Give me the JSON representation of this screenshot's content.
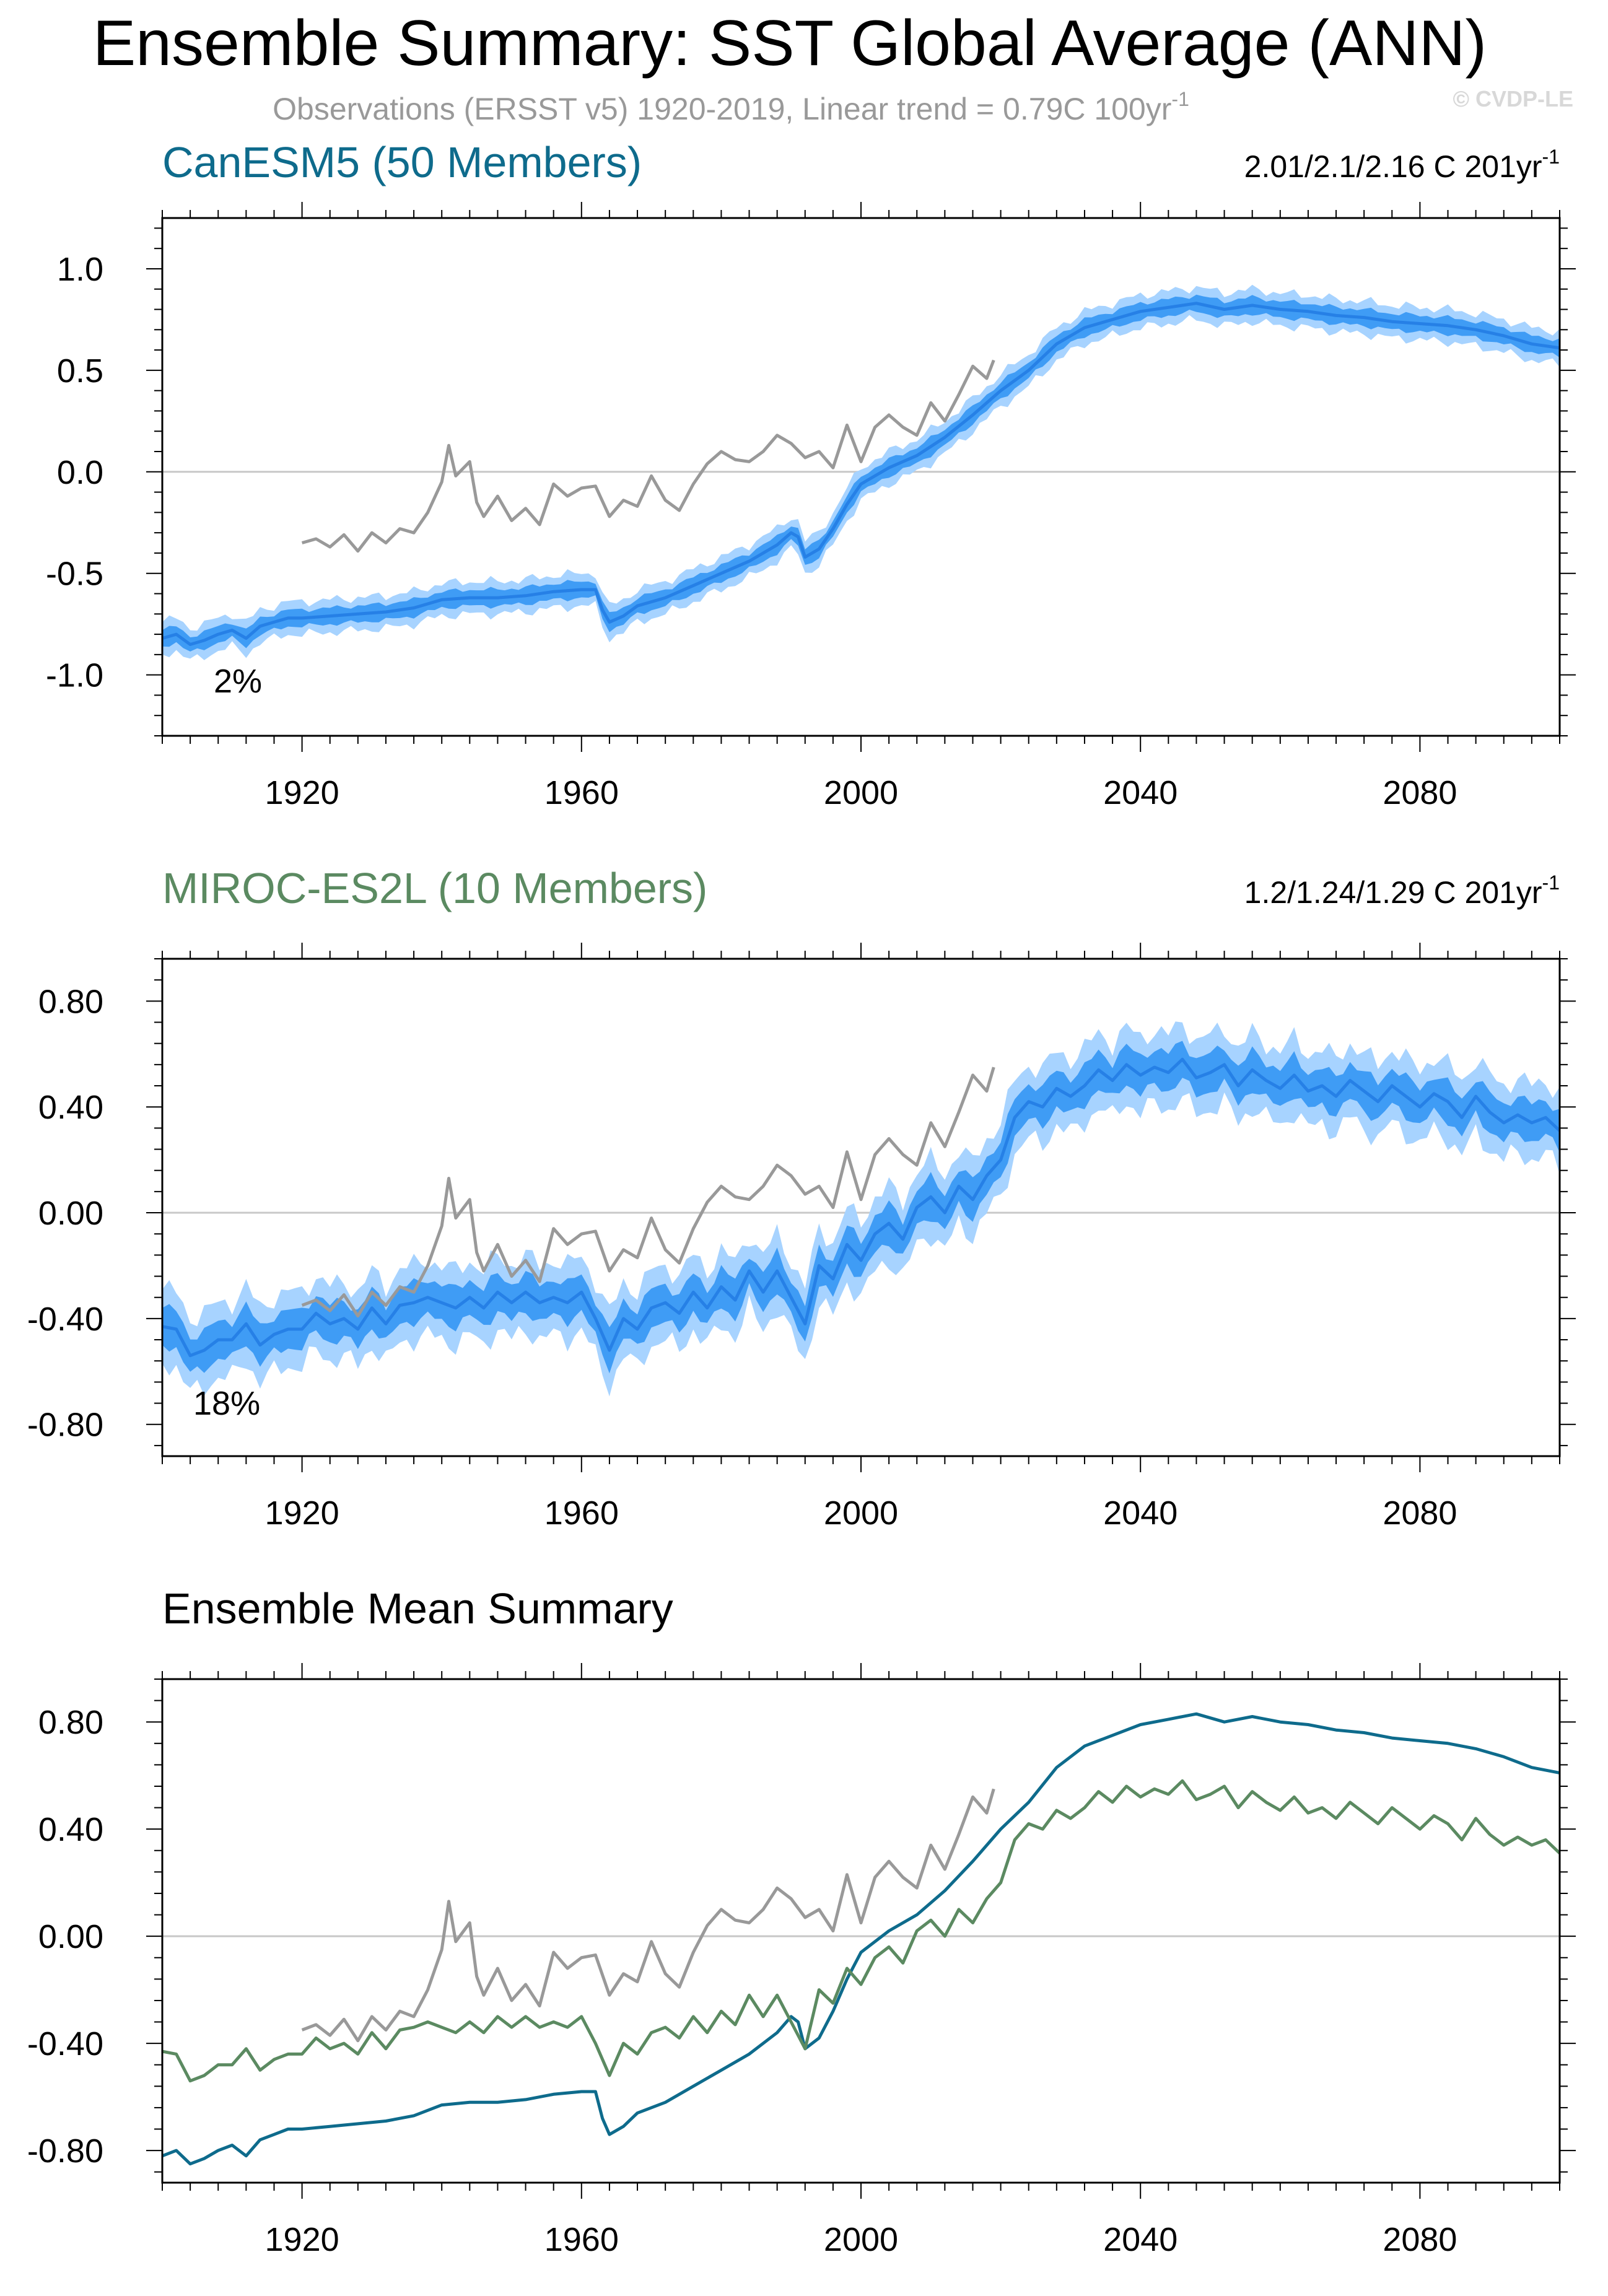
{
  "header": {
    "title": "Ensemble Summary: SST Global Average (ANN)",
    "subtitle_main": "Observations (ERSST v5) 1920-2019, Linear trend = 0.79C 100yr",
    "subtitle_sup": "-1",
    "watermark": "© CVDP-LE"
  },
  "colors": {
    "canesm5": "#0e6b8c",
    "miroc": "#5b8a61",
    "obs": "#999999",
    "band_outer": "#a7d3ff",
    "band_inner": "#3f9cf5",
    "band_mean": "#2680e6"
  },
  "chart_data": [
    {
      "id": "canesm5",
      "type": "line",
      "title": "CanESM5 (50 Members)",
      "trend_text": "2.01/2.1/2.16 C 201yr",
      "trend_sup": "-1",
      "annotation": "2%",
      "xlim": [
        1900,
        2100
      ],
      "ylim": [
        -1.3,
        1.25
      ],
      "xticks": [
        1920,
        1960,
        2000,
        2040,
        2080
      ],
      "xtick_labels": [
        "1920",
        "1960",
        "2000",
        "2040",
        "2080"
      ],
      "yticks": [
        -1.0,
        -0.5,
        0.0,
        0.5,
        1.0
      ],
      "ytick_labels": [
        "-1.0",
        "-0.5",
        "0.0",
        "0.5",
        "1.0"
      ],
      "zero_line": true,
      "ensemble_mean": {
        "x": [
          1900,
          1902,
          1904,
          1906,
          1908,
          1910,
          1912,
          1914,
          1916,
          1918,
          1920,
          1924,
          1928,
          1932,
          1936,
          1940,
          1944,
          1948,
          1952,
          1956,
          1960,
          1962,
          1963,
          1964,
          1966,
          1968,
          1972,
          1976,
          1980,
          1984,
          1988,
          1990,
          1991,
          1992,
          1994,
          1996,
          1998,
          2000,
          2004,
          2008,
          2012,
          2016,
          2020,
          2024,
          2028,
          2032,
          2036,
          2040,
          2044,
          2048,
          2052,
          2056,
          2060,
          2064,
          2068,
          2072,
          2076,
          2080,
          2084,
          2088,
          2092,
          2096,
          2100
        ],
        "y": [
          -0.82,
          -0.8,
          -0.85,
          -0.83,
          -0.8,
          -0.78,
          -0.82,
          -0.76,
          -0.74,
          -0.72,
          -0.72,
          -0.71,
          -0.7,
          -0.69,
          -0.67,
          -0.63,
          -0.62,
          -0.62,
          -0.61,
          -0.59,
          -0.58,
          -0.58,
          -0.68,
          -0.74,
          -0.71,
          -0.66,
          -0.62,
          -0.56,
          -0.5,
          -0.44,
          -0.36,
          -0.3,
          -0.32,
          -0.42,
          -0.38,
          -0.28,
          -0.16,
          -0.06,
          0.02,
          0.08,
          0.17,
          0.28,
          0.4,
          0.5,
          0.63,
          0.71,
          0.75,
          0.79,
          0.81,
          0.83,
          0.8,
          0.82,
          0.8,
          0.79,
          0.77,
          0.76,
          0.74,
          0.73,
          0.72,
          0.7,
          0.67,
          0.63,
          0.61
        ]
      },
      "spread_inner": 0.04,
      "spread_outer": 0.08,
      "observations": {
        "x": [
          1920,
          1922,
          1924,
          1926,
          1928,
          1930,
          1932,
          1934,
          1936,
          1938,
          1940,
          1941,
          1942,
          1944,
          1945,
          1946,
          1948,
          1950,
          1952,
          1954,
          1956,
          1958,
          1960,
          1962,
          1964,
          1966,
          1968,
          1970,
          1972,
          1974,
          1976,
          1978,
          1980,
          1982,
          1984,
          1986,
          1988,
          1990,
          1992,
          1994,
          1996,
          1998,
          2000,
          2002,
          2004,
          2006,
          2008,
          2010,
          2012,
          2014,
          2016,
          2018,
          2019
        ],
        "y": [
          -0.35,
          -0.33,
          -0.37,
          -0.31,
          -0.39,
          -0.3,
          -0.35,
          -0.28,
          -0.3,
          -0.2,
          -0.05,
          0.13,
          -0.02,
          0.05,
          -0.15,
          -0.22,
          -0.12,
          -0.24,
          -0.18,
          -0.26,
          -0.06,
          -0.12,
          -0.08,
          -0.07,
          -0.22,
          -0.14,
          -0.17,
          -0.02,
          -0.14,
          -0.19,
          -0.06,
          0.04,
          0.1,
          0.06,
          0.05,
          0.1,
          0.18,
          0.14,
          0.07,
          0.1,
          0.02,
          0.23,
          0.05,
          0.22,
          0.28,
          0.22,
          0.18,
          0.34,
          0.25,
          0.38,
          0.52,
          0.46,
          0.55
        ]
      }
    },
    {
      "id": "miroc",
      "type": "line",
      "title": "MIROC-ES2L (10 Members)",
      "trend_text": "1.2/1.24/1.29 C 201yr",
      "trend_sup": "-1",
      "annotation": "18%",
      "xlim": [
        1900,
        2100
      ],
      "ylim": [
        -0.92,
        0.96
      ],
      "xticks": [
        1920,
        1960,
        2000,
        2040,
        2080
      ],
      "xtick_labels": [
        "1920",
        "1960",
        "2000",
        "2040",
        "2080"
      ],
      "yticks": [
        -0.8,
        -0.4,
        0.0,
        0.4,
        0.8
      ],
      "ytick_labels": [
        "-0.80",
        "-0.40",
        "0.00",
        "0.40",
        "0.80"
      ],
      "zero_line": true,
      "ensemble_mean": {
        "x": [
          1900,
          1902,
          1904,
          1906,
          1908,
          1910,
          1912,
          1914,
          1916,
          1918,
          1920,
          1922,
          1924,
          1926,
          1928,
          1930,
          1932,
          1934,
          1936,
          1938,
          1940,
          1942,
          1944,
          1946,
          1948,
          1950,
          1952,
          1954,
          1956,
          1958,
          1960,
          1962,
          1964,
          1966,
          1968,
          1970,
          1972,
          1974,
          1976,
          1978,
          1980,
          1982,
          1984,
          1986,
          1988,
          1990,
          1992,
          1994,
          1996,
          1998,
          2000,
          2002,
          2004,
          2006,
          2008,
          2010,
          2012,
          2014,
          2016,
          2018,
          2020,
          2022,
          2024,
          2026,
          2028,
          2030,
          2032,
          2034,
          2036,
          2038,
          2040,
          2042,
          2044,
          2046,
          2048,
          2050,
          2052,
          2054,
          2056,
          2058,
          2060,
          2062,
          2064,
          2066,
          2068,
          2070,
          2072,
          2074,
          2076,
          2078,
          2080,
          2082,
          2084,
          2086,
          2088,
          2090,
          2092,
          2094,
          2096,
          2098,
          2100
        ],
        "y": [
          -0.43,
          -0.44,
          -0.54,
          -0.52,
          -0.48,
          -0.48,
          -0.42,
          -0.5,
          -0.46,
          -0.44,
          -0.44,
          -0.38,
          -0.42,
          -0.4,
          -0.44,
          -0.36,
          -0.42,
          -0.35,
          -0.34,
          -0.32,
          -0.34,
          -0.36,
          -0.32,
          -0.36,
          -0.3,
          -0.34,
          -0.3,
          -0.34,
          -0.32,
          -0.34,
          -0.3,
          -0.4,
          -0.52,
          -0.4,
          -0.44,
          -0.36,
          -0.34,
          -0.38,
          -0.3,
          -0.36,
          -0.28,
          -0.33,
          -0.22,
          -0.3,
          -0.22,
          -0.32,
          -0.42,
          -0.2,
          -0.25,
          -0.12,
          -0.18,
          -0.08,
          -0.04,
          -0.1,
          0.02,
          0.06,
          0.0,
          0.1,
          0.05,
          0.14,
          0.2,
          0.36,
          0.42,
          0.4,
          0.47,
          0.44,
          0.48,
          0.54,
          0.5,
          0.56,
          0.52,
          0.55,
          0.53,
          0.58,
          0.51,
          0.53,
          0.56,
          0.48,
          0.54,
          0.5,
          0.47,
          0.52,
          0.46,
          0.48,
          0.44,
          0.5,
          0.46,
          0.42,
          0.48,
          0.44,
          0.4,
          0.45,
          0.42,
          0.36,
          0.44,
          0.38,
          0.34,
          0.37,
          0.34,
          0.36,
          0.31
        ]
      },
      "spread_inner": 0.07,
      "spread_outer": 0.14,
      "observations": {
        "x": [
          1920,
          1922,
          1924,
          1926,
          1928,
          1930,
          1932,
          1934,
          1936,
          1938,
          1940,
          1941,
          1942,
          1944,
          1945,
          1946,
          1948,
          1950,
          1952,
          1954,
          1956,
          1958,
          1960,
          1962,
          1964,
          1966,
          1968,
          1970,
          1972,
          1974,
          1976,
          1978,
          1980,
          1982,
          1984,
          1986,
          1988,
          1990,
          1992,
          1994,
          1996,
          1998,
          2000,
          2002,
          2004,
          2006,
          2008,
          2010,
          2012,
          2014,
          2016,
          2018,
          2019
        ],
        "y": [
          -0.35,
          -0.33,
          -0.37,
          -0.31,
          -0.39,
          -0.3,
          -0.35,
          -0.28,
          -0.3,
          -0.2,
          -0.05,
          0.13,
          -0.02,
          0.05,
          -0.15,
          -0.22,
          -0.12,
          -0.24,
          -0.18,
          -0.26,
          -0.06,
          -0.12,
          -0.08,
          -0.07,
          -0.22,
          -0.14,
          -0.17,
          -0.02,
          -0.14,
          -0.19,
          -0.06,
          0.04,
          0.1,
          0.06,
          0.05,
          0.1,
          0.18,
          0.14,
          0.07,
          0.1,
          0.02,
          0.23,
          0.05,
          0.22,
          0.28,
          0.22,
          0.18,
          0.34,
          0.25,
          0.38,
          0.52,
          0.46,
          0.55
        ]
      }
    },
    {
      "id": "summary",
      "type": "line",
      "title": "Ensemble Mean Summary",
      "xlim": [
        1900,
        2100
      ],
      "ylim": [
        -0.92,
        0.96
      ],
      "xticks": [
        1920,
        1960,
        2000,
        2040,
        2080
      ],
      "xtick_labels": [
        "1920",
        "1960",
        "2000",
        "2040",
        "2080"
      ],
      "yticks": [
        -0.8,
        -0.4,
        0.0,
        0.4,
        0.8
      ],
      "ytick_labels": [
        "-0.80",
        "-0.40",
        "0.00",
        "0.40",
        "0.80"
      ],
      "zero_line": true,
      "series": [
        {
          "name": "CanESM5",
          "color_key": "canesm5",
          "source": "canesm5"
        },
        {
          "name": "MIROC-ES2L",
          "color_key": "miroc",
          "source": "miroc"
        },
        {
          "name": "Observations",
          "color_key": "obs",
          "source": "obs"
        }
      ]
    }
  ]
}
